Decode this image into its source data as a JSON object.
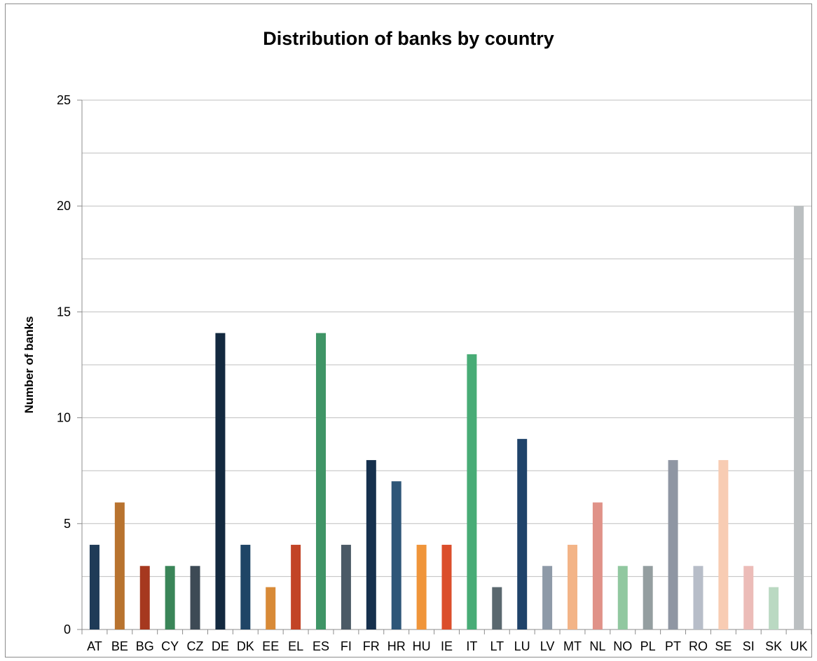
{
  "chart_data": {
    "type": "bar",
    "title": "Distribution of banks by country",
    "xlabel": "",
    "ylabel": "Number of banks",
    "ylim": [
      0,
      25
    ],
    "yticks": [
      0,
      5,
      10,
      15,
      20,
      25
    ],
    "grid": "horizontal, every 2.5",
    "legend": "none",
    "categories": [
      "AT",
      "BE",
      "BG",
      "CY",
      "CZ",
      "DE",
      "DK",
      "EE",
      "EL",
      "ES",
      "FI",
      "FR",
      "HR",
      "HU",
      "IE",
      "IT",
      "LT",
      "LU",
      "LV",
      "MT",
      "NL",
      "NO",
      "PL",
      "PT",
      "RO",
      "SE",
      "SI",
      "SK",
      "UK"
    ],
    "values": [
      4,
      6,
      3,
      3,
      3,
      14,
      4,
      2,
      4,
      14,
      4,
      8,
      7,
      4,
      4,
      13,
      2,
      9,
      3,
      4,
      6,
      3,
      3,
      8,
      3,
      8,
      3,
      2,
      20
    ],
    "colors": [
      "#1f3b57",
      "#b8732f",
      "#a6381f",
      "#3a8558",
      "#3d4a55",
      "#13293f",
      "#1f4566",
      "#d88a37",
      "#c24426",
      "#3f9566",
      "#4b5a66",
      "#16304d",
      "#2e5678",
      "#f0953a",
      "#db4e2b",
      "#48ac76",
      "#5a686f",
      "#1f436a",
      "#8e9aa8",
      "#f3b487",
      "#e09288",
      "#91c8a0",
      "#949ea0",
      "#8f96a3",
      "#b7bdc8",
      "#f8ccb3",
      "#ecbcb8",
      "#bad9c2",
      "#bbbfc1"
    ]
  }
}
